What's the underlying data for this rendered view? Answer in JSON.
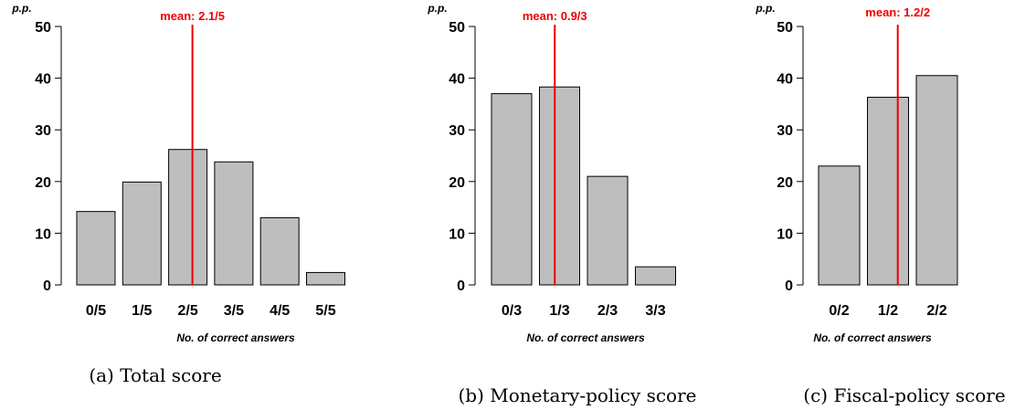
{
  "chart_data": [
    {
      "type": "bar",
      "panel": "a",
      "ylabel": "p.p.",
      "xlabel": "No. of correct answers",
      "categories": [
        "0/5",
        "1/5",
        "2/5",
        "3/5",
        "4/5",
        "5/5"
      ],
      "values": [
        14.2,
        19.9,
        26.2,
        23.8,
        13.0,
        2.4
      ],
      "ylim": [
        0,
        50
      ],
      "yticks": [
        0,
        10,
        20,
        30,
        40,
        50
      ],
      "mean": 2.1,
      "mean_label": "mean: 2.1/5",
      "caption": "(a) Total score",
      "colors": {
        "bar": "#bebebe",
        "mean": "#ee0000"
      }
    },
    {
      "type": "bar",
      "panel": "b",
      "ylabel": "p.p.",
      "xlabel": "No. of correct answers",
      "categories": [
        "0/3",
        "1/3",
        "2/3",
        "3/3"
      ],
      "values": [
        37.0,
        38.3,
        21.0,
        3.5
      ],
      "ylim": [
        0,
        50
      ],
      "yticks": [
        0,
        10,
        20,
        30,
        40,
        50
      ],
      "mean": 0.9,
      "mean_label": "mean: 0.9/3",
      "caption": "(b) Monetary-policy score",
      "colors": {
        "bar": "#bebebe",
        "mean": "#ee0000"
      }
    },
    {
      "type": "bar",
      "panel": "c",
      "ylabel": "p.p.",
      "xlabel": "No. of correct answers",
      "categories": [
        "0/2",
        "1/2",
        "2/2"
      ],
      "values": [
        23.0,
        36.3,
        40.5
      ],
      "ylim": [
        0,
        50
      ],
      "yticks": [
        0,
        10,
        20,
        30,
        40,
        50
      ],
      "mean": 1.2,
      "mean_label": "mean: 1.2/2",
      "caption": "(c) Fiscal-policy score",
      "colors": {
        "bar": "#bebebe",
        "mean": "#ee0000"
      }
    }
  ]
}
